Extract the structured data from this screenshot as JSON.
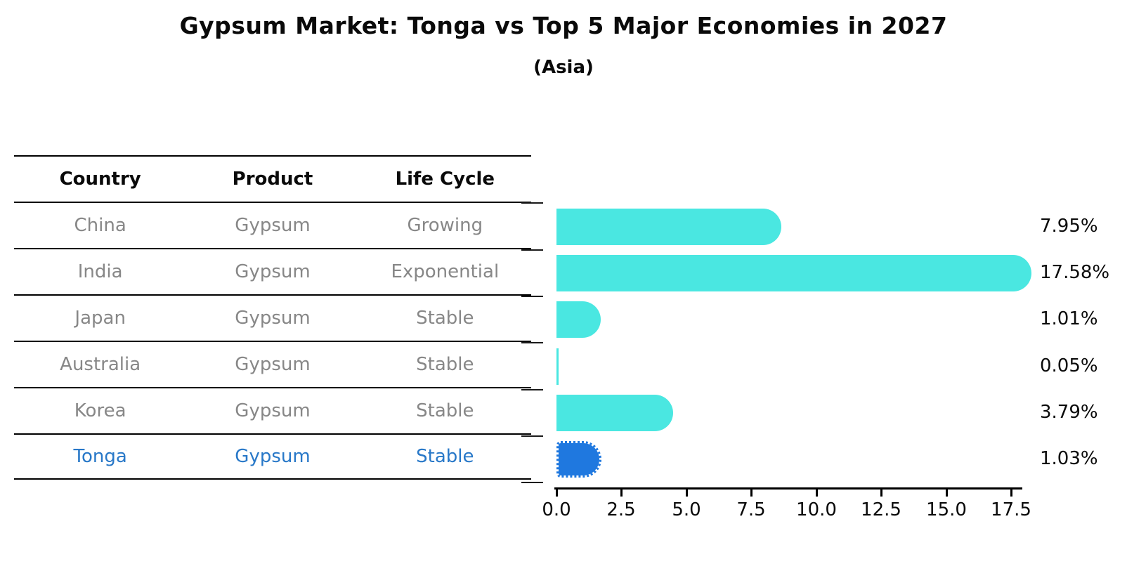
{
  "header": {
    "title": "Gypsum Market: Tonga vs Top 5 Major Economies in 2027",
    "subtitle": "(Asia)"
  },
  "table": {
    "headers": [
      "Country",
      "Product",
      "Life Cycle"
    ],
    "rows": [
      {
        "country": "China",
        "product": "Gypsum",
        "life_cycle": "Growing"
      },
      {
        "country": "India",
        "product": "Gypsum",
        "life_cycle": "Exponential"
      },
      {
        "country": "Japan",
        "product": "Gypsum",
        "life_cycle": "Stable"
      },
      {
        "country": "Australia",
        "product": "Gypsum",
        "life_cycle": "Stable"
      },
      {
        "country": "Korea",
        "product": "Gypsum",
        "life_cycle": "Stable"
      },
      {
        "country": "Tonga",
        "product": "Gypsum",
        "life_cycle": "Stable"
      }
    ],
    "highlight_row": "Tonga"
  },
  "chart_data": {
    "type": "bar",
    "orientation": "horizontal",
    "title": "Gypsum Market: Tonga vs Top 5 Major Economies in 2027",
    "subtitle": "(Asia)",
    "categories": [
      "China",
      "India",
      "Japan",
      "Australia",
      "Korea",
      "Tonga"
    ],
    "values": [
      7.95,
      17.58,
      1.01,
      0.05,
      3.79,
      1.03
    ],
    "value_labels": [
      "7.95%",
      "17.58%",
      "1.01%",
      "0.05%",
      "3.79%",
      "1.03%"
    ],
    "x_tick_labels": [
      "0.0",
      "2.5",
      "5.0",
      "7.5",
      "10.0",
      "12.5",
      "15.0",
      "17.5"
    ],
    "xlim": [
      0,
      17.9
    ],
    "grid": false,
    "legend": false,
    "bar_colors": [
      "#4AE7E1",
      "#4AE7E1",
      "#4AE7E1",
      "#4AE7E1",
      "#4AE7E1",
      "#1F78DF"
    ],
    "highlight_index": 5,
    "highlight_bar_color": "#1F78DF",
    "base_bar_color": "#4AE7E1",
    "accent_text_color": "#2878C8",
    "muted_text_color": "#878787",
    "axis_color": "#000000"
  }
}
